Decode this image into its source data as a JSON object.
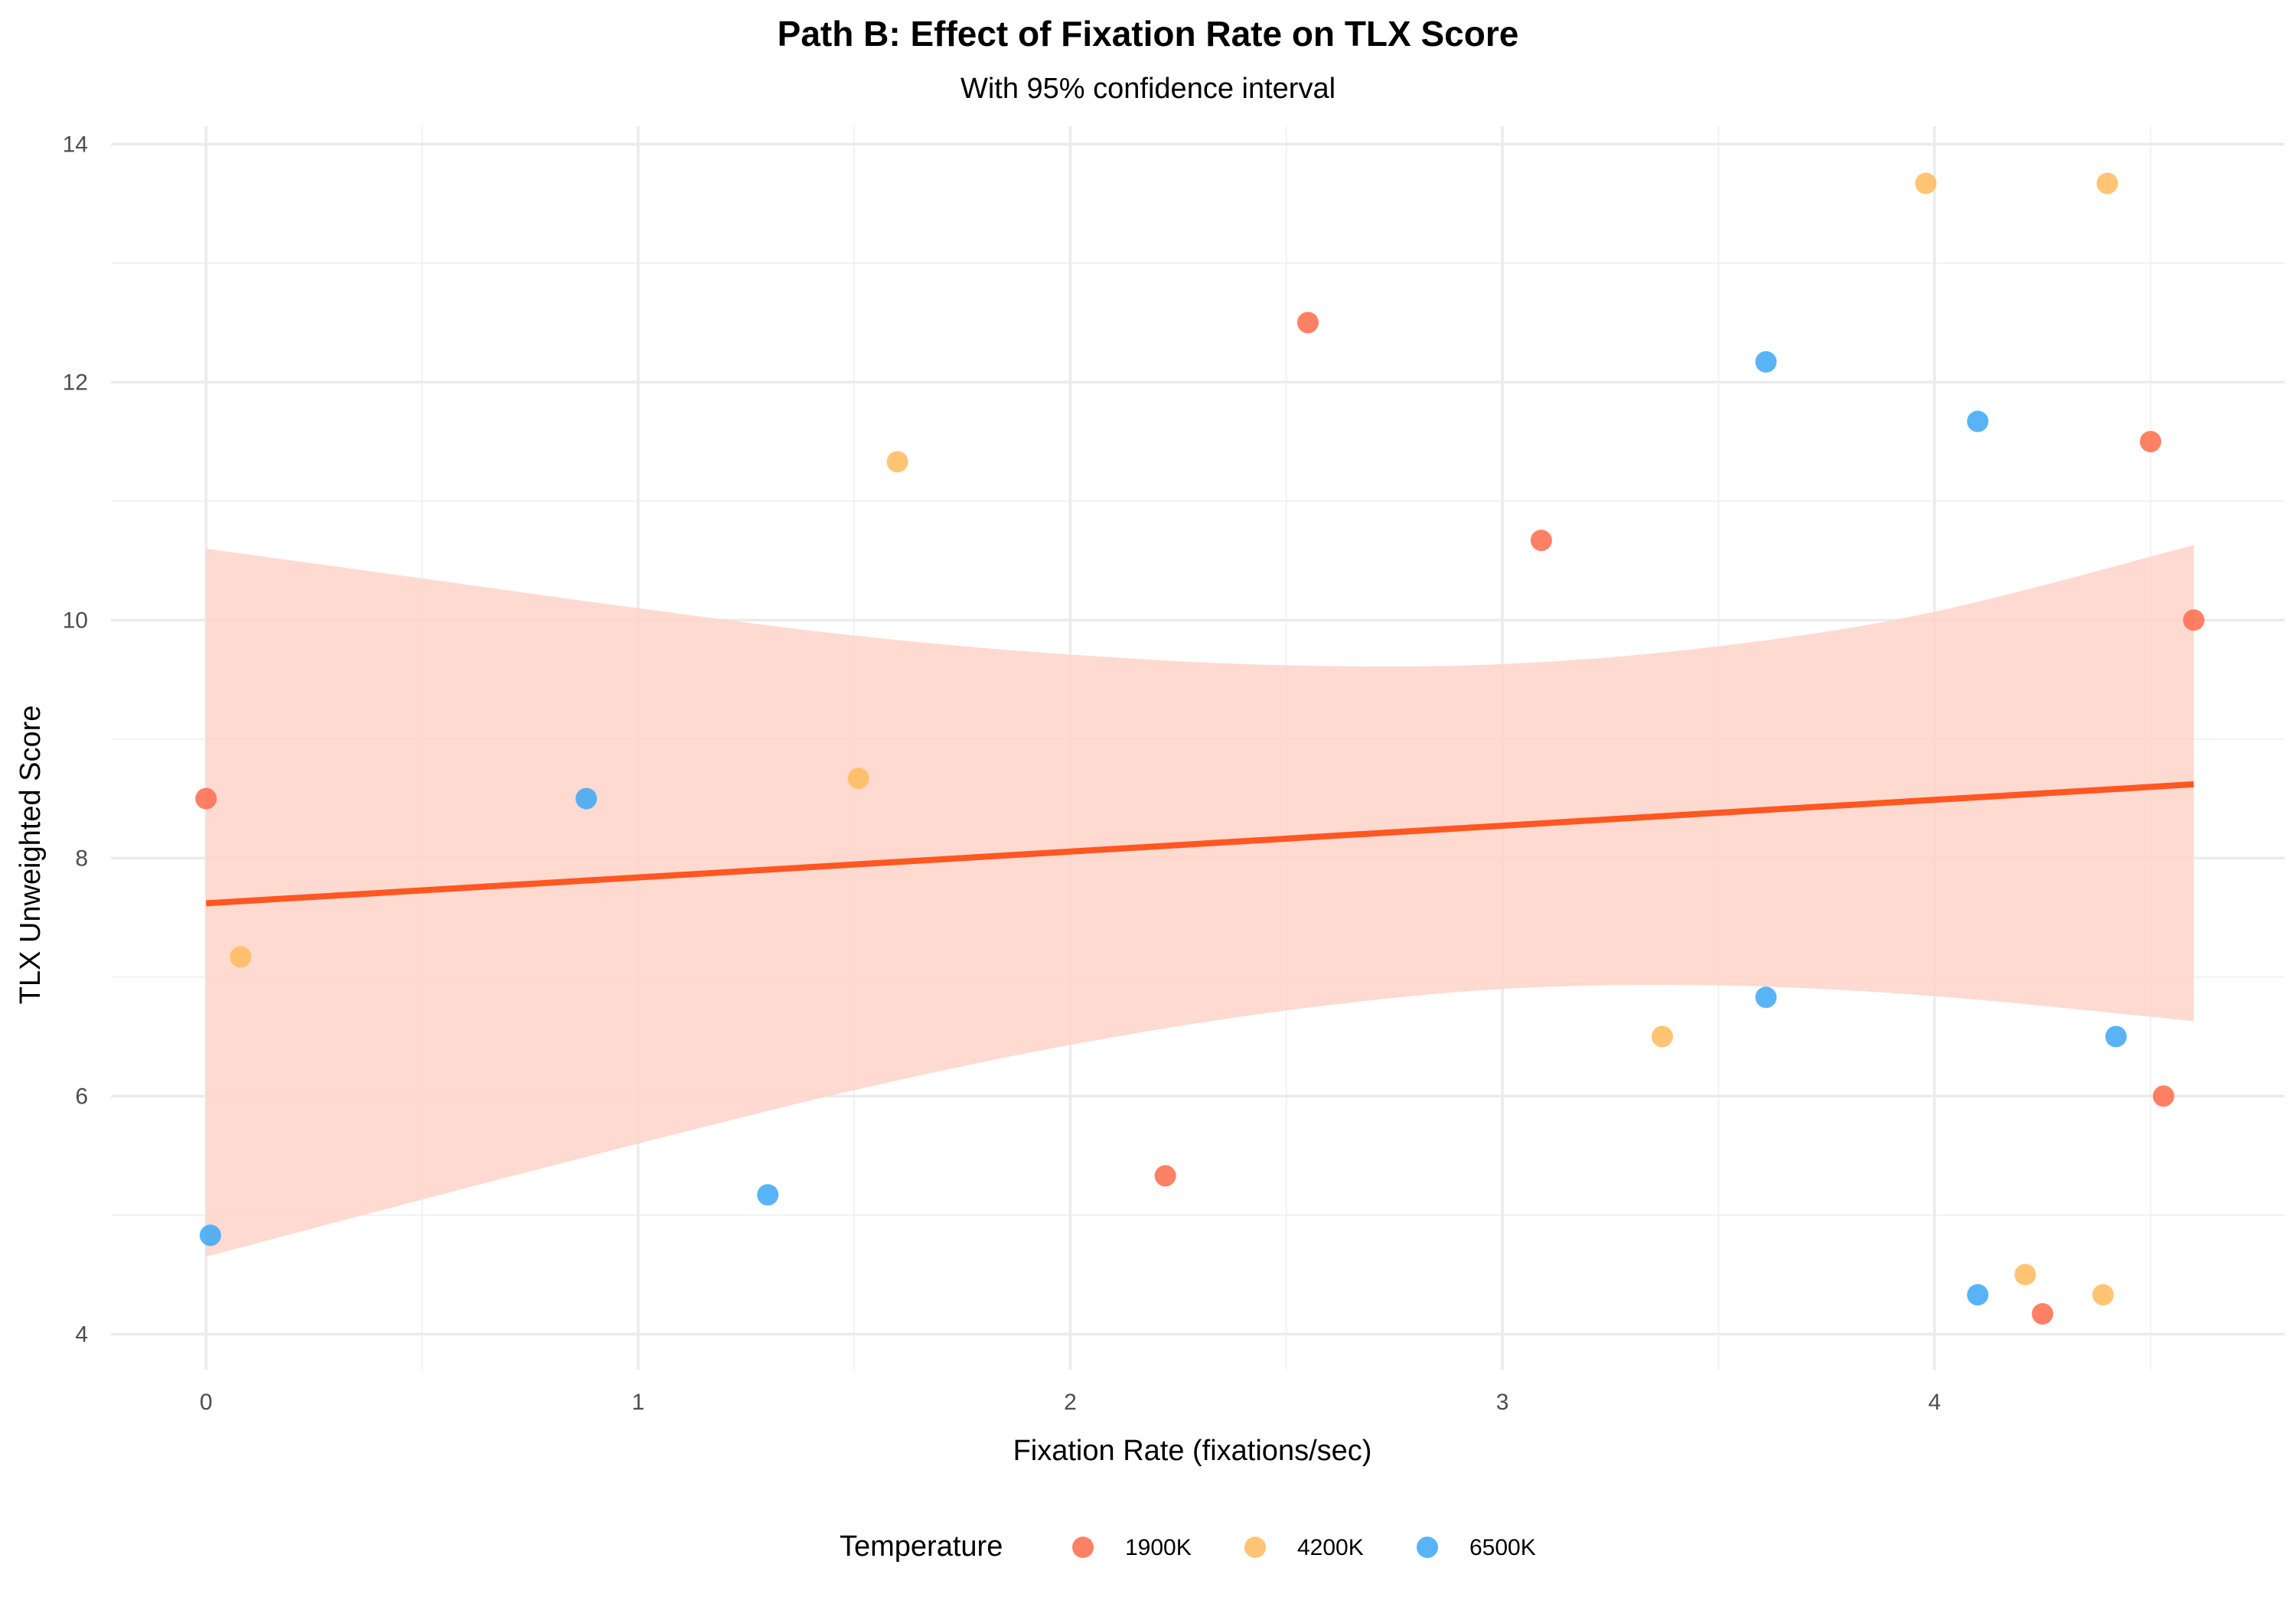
{
  "chart_data": {
    "type": "scatter",
    "title": "Path B: Effect of Fixation Rate on TLX Score",
    "subtitle": "With 95% confidence interval",
    "xlabel": "Fixation Rate (fixations/sec)",
    "ylabel": "TLX Unweighted Score",
    "xlim": [
      -0.22,
      4.81
    ],
    "ylim": [
      3.7,
      14.15
    ],
    "x_ticks": [
      0,
      1,
      2,
      3,
      4
    ],
    "y_ticks": [
      4,
      6,
      8,
      10,
      12,
      14
    ],
    "grid": true,
    "legend": {
      "title": "Temperature",
      "placement": "bottom",
      "entries": [
        "1900K",
        "4200K",
        "6500K"
      ]
    },
    "colors": {
      "1900K": "#FF6B4A",
      "4200K": "#FFBB5C",
      "6500K": "#3BA7F5",
      "fit_line": "#FF5722",
      "ribbon": "#FFD3C9"
    },
    "series": [
      {
        "name": "1900K",
        "points": [
          {
            "x": 0.0,
            "y": 8.5
          },
          {
            "x": 2.22,
            "y": 5.33
          },
          {
            "x": 2.55,
            "y": 12.5
          },
          {
            "x": 3.09,
            "y": 10.67
          },
          {
            "x": 4.25,
            "y": 4.17
          },
          {
            "x": 4.5,
            "y": 11.5
          },
          {
            "x": 4.53,
            "y": 6.0
          },
          {
            "x": 4.6,
            "y": 10.0
          }
        ]
      },
      {
        "name": "4200K",
        "points": [
          {
            "x": 0.08,
            "y": 7.17
          },
          {
            "x": 1.51,
            "y": 8.67
          },
          {
            "x": 1.6,
            "y": 11.33
          },
          {
            "x": 3.37,
            "y": 6.5
          },
          {
            "x": 3.98,
            "y": 13.67
          },
          {
            "x": 4.21,
            "y": 4.5
          },
          {
            "x": 4.39,
            "y": 4.33
          },
          {
            "x": 4.4,
            "y": 13.67
          }
        ]
      },
      {
        "name": "6500K",
        "points": [
          {
            "x": 0.01,
            "y": 4.83
          },
          {
            "x": 0.88,
            "y": 8.5
          },
          {
            "x": 1.3,
            "y": 5.17
          },
          {
            "x": 3.61,
            "y": 12.17
          },
          {
            "x": 3.61,
            "y": 6.83
          },
          {
            "x": 4.1,
            "y": 11.67
          },
          {
            "x": 4.1,
            "y": 4.33
          },
          {
            "x": 4.42,
            "y": 6.5
          }
        ]
      }
    ],
    "fit": {
      "method": "linear",
      "line": [
        {
          "x": 0.0,
          "y": 7.62
        },
        {
          "x": 4.6,
          "y": 8.62
        }
      ],
      "ci_upper": [
        {
          "x": 0.0,
          "y": 10.6
        },
        {
          "x": 0.5,
          "y": 10.35
        },
        {
          "x": 1.0,
          "y": 10.1
        },
        {
          "x": 1.5,
          "y": 9.87
        },
        {
          "x": 2.0,
          "y": 9.71
        },
        {
          "x": 2.5,
          "y": 9.62
        },
        {
          "x": 3.0,
          "y": 9.63
        },
        {
          "x": 3.5,
          "y": 9.78
        },
        {
          "x": 4.0,
          "y": 10.07
        },
        {
          "x": 4.6,
          "y": 10.63
        }
      ],
      "ci_lower": [
        {
          "x": 0.0,
          "y": 4.65
        },
        {
          "x": 0.5,
          "y": 5.13
        },
        {
          "x": 1.0,
          "y": 5.6
        },
        {
          "x": 1.5,
          "y": 6.05
        },
        {
          "x": 2.0,
          "y": 6.43
        },
        {
          "x": 2.5,
          "y": 6.72
        },
        {
          "x": 3.0,
          "y": 6.9
        },
        {
          "x": 3.5,
          "y": 6.93
        },
        {
          "x": 4.0,
          "y": 6.84
        },
        {
          "x": 4.6,
          "y": 6.63
        }
      ]
    }
  }
}
